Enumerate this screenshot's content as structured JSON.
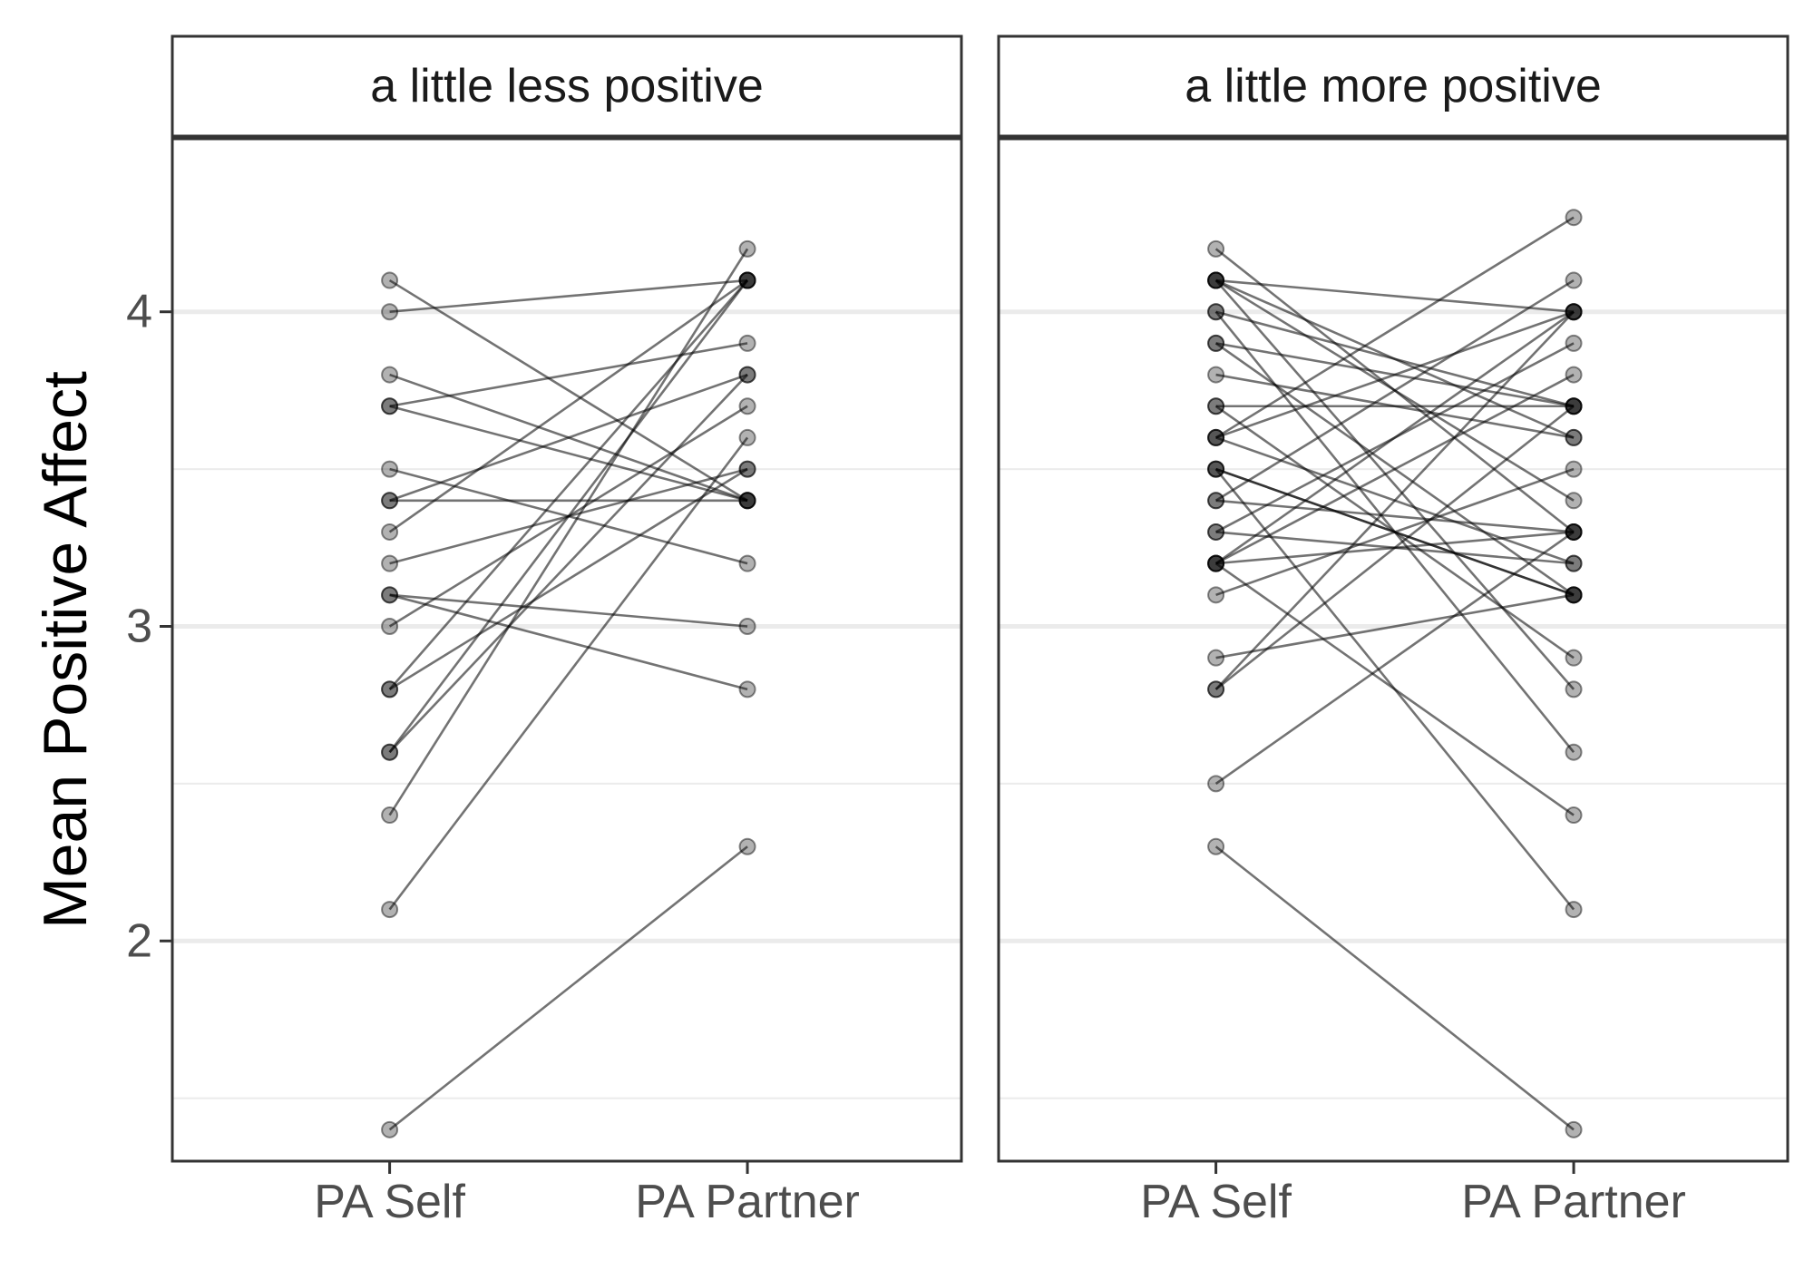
{
  "chart_data": {
    "type": "line",
    "ylabel": "Mean Positive Affect",
    "xlabel": "",
    "x_categories": [
      "PA Self",
      "PA Partner"
    ],
    "ylim": [
      1.3,
      4.55
    ],
    "y_major_ticks": [
      2,
      3,
      4
    ],
    "y_minor_gridlines": [
      1.5,
      2.5,
      3.5
    ],
    "grid": "horizontal",
    "facets": [
      {
        "label": "a little less positive",
        "pairs": [
          [
            4.1,
            3.4
          ],
          [
            4.0,
            4.1
          ],
          [
            3.8,
            3.4
          ],
          [
            3.7,
            3.9
          ],
          [
            3.7,
            3.4
          ],
          [
            3.5,
            3.2
          ],
          [
            3.4,
            3.4
          ],
          [
            3.4,
            3.8
          ],
          [
            3.3,
            4.1
          ],
          [
            3.2,
            3.5
          ],
          [
            3.1,
            3.0
          ],
          [
            3.1,
            2.8
          ],
          [
            3.0,
            3.7
          ],
          [
            2.8,
            3.5
          ],
          [
            2.8,
            4.1
          ],
          [
            2.6,
            3.8
          ],
          [
            2.6,
            4.1
          ],
          [
            2.4,
            4.2
          ],
          [
            2.1,
            3.6
          ],
          [
            1.4,
            2.3
          ]
        ]
      },
      {
        "label": "a little more positive",
        "pairs": [
          [
            4.2,
            3.3
          ],
          [
            4.1,
            4.0
          ],
          [
            4.1,
            3.6
          ],
          [
            4.1,
            2.8
          ],
          [
            4.1,
            3.4
          ],
          [
            4.0,
            3.7
          ],
          [
            4.0,
            2.6
          ],
          [
            3.9,
            3.7
          ],
          [
            3.9,
            3.1
          ],
          [
            3.8,
            3.6
          ],
          [
            3.7,
            3.7
          ],
          [
            3.7,
            2.9
          ],
          [
            3.6,
            4.0
          ],
          [
            3.6,
            4.3
          ],
          [
            3.6,
            3.2
          ],
          [
            3.5,
            3.1
          ],
          [
            3.5,
            3.1
          ],
          [
            3.5,
            2.1
          ],
          [
            3.4,
            3.3
          ],
          [
            3.4,
            4.1
          ],
          [
            3.3,
            3.9
          ],
          [
            3.3,
            3.2
          ],
          [
            3.2,
            4.0
          ],
          [
            3.2,
            3.8
          ],
          [
            3.2,
            3.3
          ],
          [
            3.2,
            2.4
          ],
          [
            3.1,
            3.5
          ],
          [
            2.9,
            3.1
          ],
          [
            2.8,
            4.0
          ],
          [
            2.8,
            3.7
          ],
          [
            2.5,
            3.3
          ],
          [
            2.3,
            1.4
          ]
        ]
      }
    ],
    "point_color": "#000000",
    "line_color": "#000000",
    "panel_border_color": "#333333",
    "strip_fill": "#ffffff",
    "gridline_color": "#ebebeb"
  }
}
